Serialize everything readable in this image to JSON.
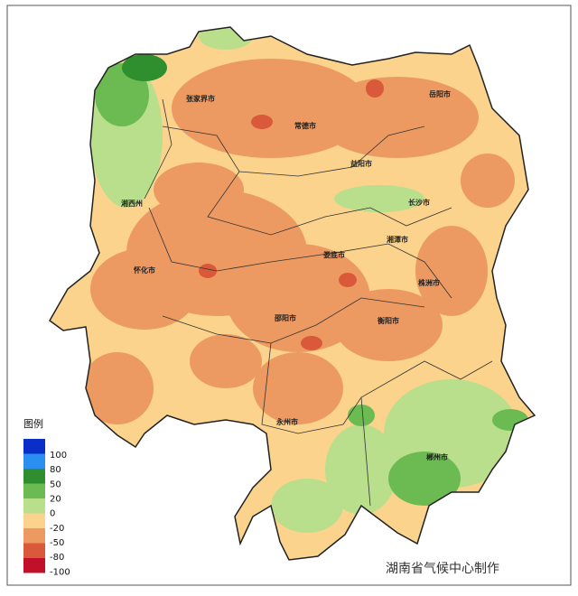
{
  "map": {
    "cities": [
      "张家界市",
      "常德市",
      "岳阳市",
      "益阳市",
      "长沙市",
      "湘西州",
      "怀化市",
      "娄底市",
      "湘潭市",
      "株洲市",
      "邵阳市",
      "衡阳市",
      "永州市",
      "郴州市"
    ],
    "legend": {
      "title": "图例",
      "breaks": [
        100,
        80,
        50,
        20,
        0,
        -20,
        -50,
        -80,
        -100
      ],
      "colors": [
        "#0a2fc8",
        "#2a8ff0",
        "#2f8f2f",
        "#6cbb52",
        "#b9de8c",
        "#fbd38c",
        "#ec9a62",
        "#d9593a",
        "#c0102a"
      ]
    },
    "credit": "湖南省气候中心制作"
  }
}
